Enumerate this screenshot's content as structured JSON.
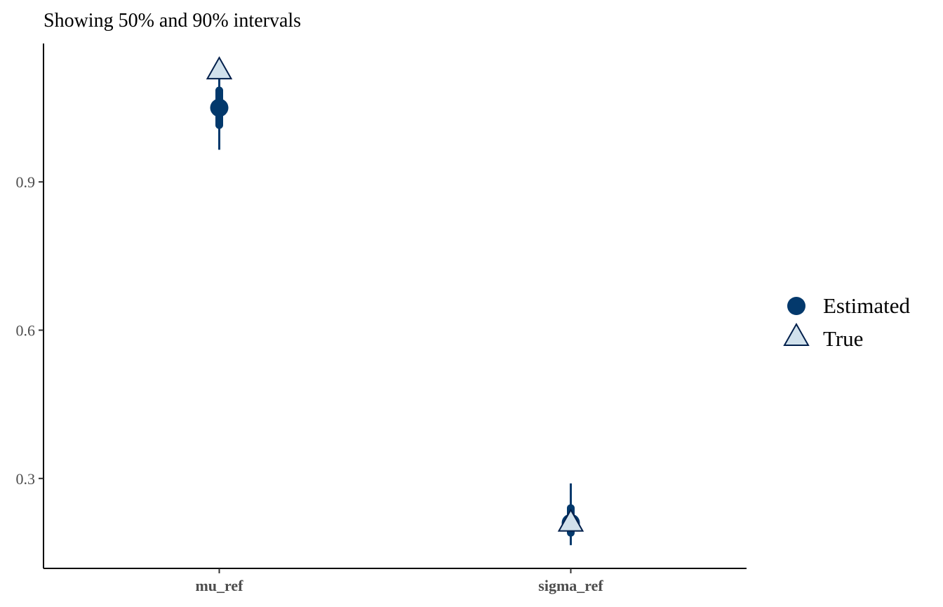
{
  "chart_data": {
    "type": "scatter",
    "subtitle": "Showing 50% and 90% intervals",
    "categories": [
      "mu_ref",
      "sigma_ref"
    ],
    "y_ticks": [
      0.3,
      0.6,
      0.9
    ],
    "y_tick_labels": [
      "0.3",
      "0.6",
      "0.9"
    ],
    "ylim": [
      0.118,
      1.18
    ],
    "grid": false,
    "series": [
      {
        "name": "Estimated",
        "marker": "circle",
        "color": "#03396c",
        "values": [
          1.05,
          0.21
        ],
        "inner_50": [
          [
            1.015,
            1.085
          ],
          [
            0.19,
            0.24
          ]
        ],
        "outer_90": [
          [
            0.965,
            1.115
          ],
          [
            0.165,
            0.29
          ]
        ]
      },
      {
        "name": "True",
        "marker": "triangle",
        "color": "#d1e1ec",
        "stroke": "#011f4b",
        "values": [
          1.125,
          0.21
        ]
      }
    ],
    "legend": {
      "position": "right",
      "items": [
        "Estimated",
        "True"
      ]
    }
  }
}
